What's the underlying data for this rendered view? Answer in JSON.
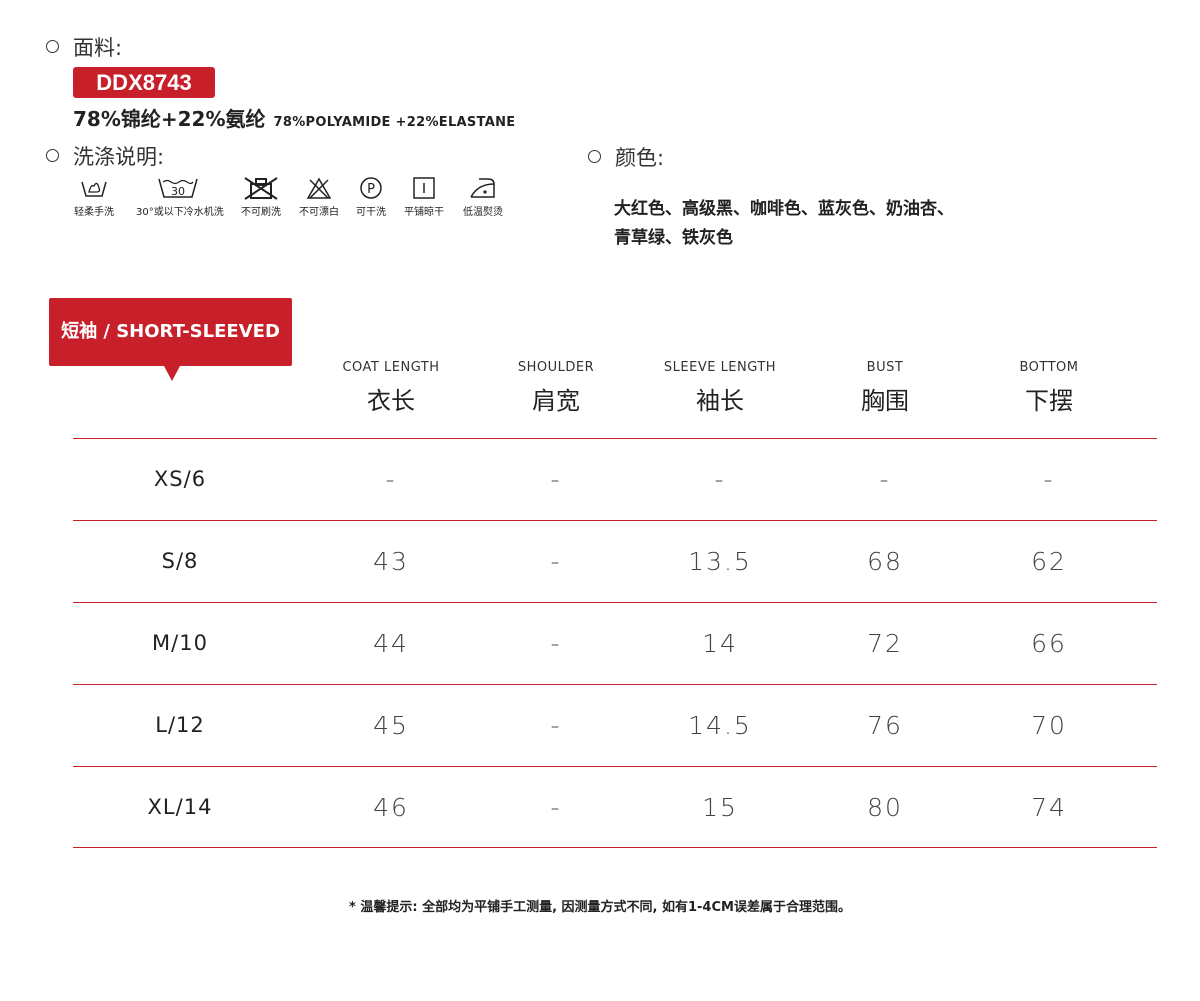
{
  "fabric": {
    "label": "面料:",
    "code": "DDX8743",
    "composition_zh": "78%锦纶+22%氨纶",
    "composition_en": "78%POLYAMIDE +22%ELASTANE"
  },
  "care": {
    "label": "洗涤说明:",
    "icons": [
      {
        "icon": "hand-wash-icon",
        "label": "轻柔手洗"
      },
      {
        "icon": "machine-wash-30-icon",
        "text": "30",
        "label": "30°或以下冷水机洗"
      },
      {
        "icon": "no-brush-icon",
        "label": "不可刷洗"
      },
      {
        "icon": "no-bleach-icon",
        "label": "不可漂白"
      },
      {
        "icon": "dry-clean-p-icon",
        "text": "P",
        "label": "可干洗"
      },
      {
        "icon": "flat-dry-icon",
        "label": "平铺晾干"
      },
      {
        "icon": "low-iron-icon",
        "label": "低温熨烫"
      }
    ]
  },
  "color": {
    "label": "颜色:",
    "line1": "大红色、高级黑、咖啡色、蓝灰色、奶油杏、",
    "line2": "青草绿、铁灰色"
  },
  "table": {
    "tag": "短袖 / SHORT-SLEEVED",
    "columns": [
      {
        "en": "COAT LENGTH",
        "zh": "衣长"
      },
      {
        "en": "SHOULDER",
        "zh": "肩宽"
      },
      {
        "en": "SLEEVE LENGTH",
        "zh": "袖长"
      },
      {
        "en": "BUST",
        "zh": "胸围"
      },
      {
        "en": "BOTTOM",
        "zh": "下摆"
      }
    ],
    "rows": [
      {
        "size": "XS/6",
        "values": [
          "-",
          "-",
          "-",
          "-",
          "-"
        ]
      },
      {
        "size": "S/8",
        "values": [
          "43",
          "-",
          "13.5",
          "68",
          "62"
        ]
      },
      {
        "size": "M/10",
        "values": [
          "44",
          "-",
          "14",
          "72",
          "66"
        ]
      },
      {
        "size": "L/12",
        "values": [
          "45",
          "-",
          "14.5",
          "76",
          "70"
        ]
      },
      {
        "size": "XL/14",
        "values": [
          "46",
          "-",
          "15",
          "80",
          "74"
        ]
      }
    ]
  },
  "note": "* 温馨提示: 全部均为平铺手工测量, 因测量方式不同, 如有1-4CM误差属于合理范围。",
  "colors": {
    "accent": "#c8202a",
    "text": "#222222"
  }
}
